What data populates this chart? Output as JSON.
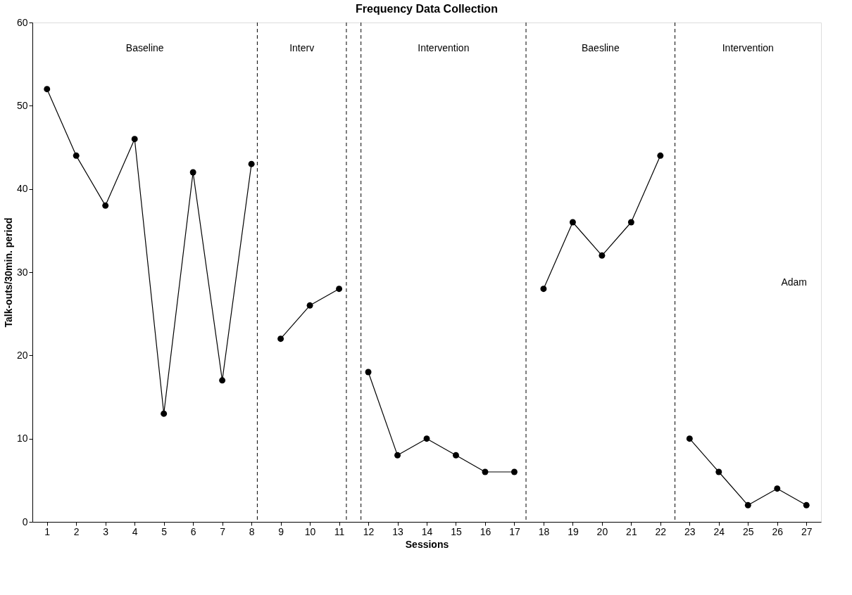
{
  "chart_data": {
    "type": "line",
    "title": "Frequency Data Collection",
    "xlabel": "Sessions",
    "ylabel": "Talk-outs/30min. period",
    "xlim": [
      0.5,
      27.5
    ],
    "xticks": [
      1,
      2,
      3,
      4,
      5,
      6,
      7,
      8,
      9,
      10,
      11,
      12,
      13,
      14,
      15,
      16,
      17,
      18,
      19,
      20,
      21,
      22,
      23,
      24,
      25,
      26,
      27
    ],
    "ylim": [
      0,
      60
    ],
    "yticks": [
      0,
      10,
      20,
      30,
      40,
      50,
      60
    ],
    "series": [
      {
        "color": "#000000",
        "x": [
          1,
          2,
          3,
          4,
          5,
          6,
          7,
          8
        ],
        "values": [
          52,
          44,
          38,
          46,
          13,
          42,
          17,
          43
        ]
      },
      {
        "color": "#000000",
        "x": [
          9,
          10,
          11
        ],
        "values": [
          22,
          26,
          28
        ]
      },
      {
        "color": "#000000",
        "x": [
          12,
          13,
          14,
          15,
          16,
          17
        ],
        "values": [
          18,
          8,
          10,
          8,
          6,
          6
        ]
      },
      {
        "color": "#000000",
        "x": [
          18,
          19,
          20,
          21,
          22
        ],
        "values": [
          28,
          36,
          32,
          36,
          44
        ]
      },
      {
        "color": "#000000",
        "x": [
          23,
          24,
          25,
          26,
          27
        ],
        "values": [
          10,
          6,
          2,
          4,
          2
        ]
      }
    ],
    "ref_lines": [
      {
        "axis": "x",
        "value": 8.2,
        "color": "#000000",
        "line_style": "dashed"
      },
      {
        "axis": "x",
        "value": 11.25,
        "color": "#000000",
        "line_style": "dashed"
      },
      {
        "axis": "x",
        "value": 11.75,
        "color": "#000000",
        "line_style": "dashed"
      },
      {
        "axis": "x",
        "value": 17.4,
        "color": "#000000",
        "line_style": "dashed"
      },
      {
        "axis": "x",
        "value": 22.5,
        "color": "#000000",
        "line_style": "dashed"
      }
    ],
    "annotations": [
      "Baseline",
      "Interv",
      "Intervention",
      "Baesline",
      "Intervention",
      "Adam"
    ],
    "marker": "circle",
    "grid": false
  }
}
